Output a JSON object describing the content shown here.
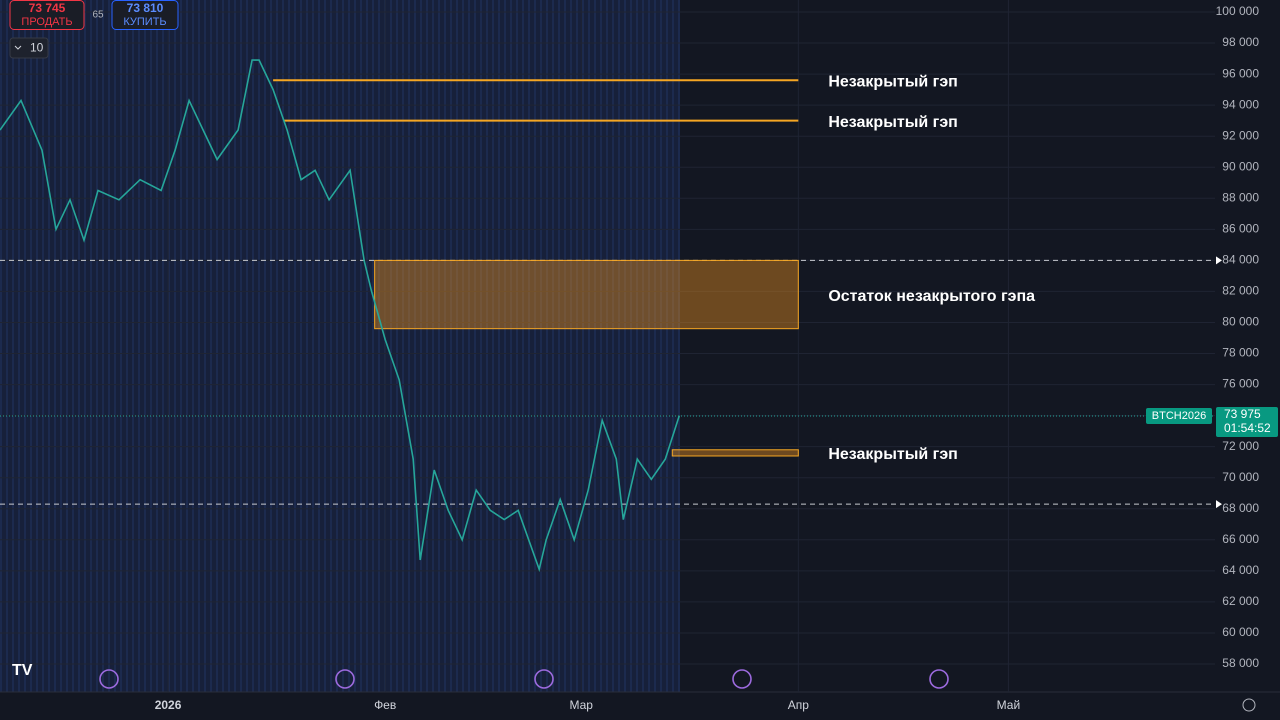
{
  "chart_data": {
    "type": "line",
    "symbol": "BTCH2026",
    "sell": {
      "price": {
        "value": 73745,
        "label": "73 745"
      },
      "label": "ПРОДАТЬ"
    },
    "spread": 65,
    "buy": {
      "price": {
        "value": 73810,
        "label": "73 810"
      },
      "label": "КУПИТЬ"
    },
    "interval": 10,
    "last_price": {
      "value": 73975,
      "label": "73 975"
    },
    "countdown": "01:54:52",
    "color": "#26a69a",
    "x": [
      -24,
      -21,
      -18,
      -16,
      -14,
      -12,
      -10,
      -7,
      -4,
      -1,
      1,
      3,
      5,
      7,
      10,
      12,
      13,
      15,
      17,
      19,
      21,
      23,
      26,
      28,
      29,
      31,
      33,
      35,
      36,
      38,
      40,
      42,
      44,
      46,
      48,
      50,
      53,
      54,
      56,
      58,
      60,
      62,
      64,
      65,
      67,
      69,
      71,
      73
    ],
    "values": [
      92400,
      94300,
      91100,
      86000,
      87900,
      85300,
      88500,
      87900,
      89200,
      88500,
      91100,
      94300,
      92400,
      90500,
      92400,
      96900,
      96900,
      95000,
      92400,
      89200,
      89800,
      87900,
      89800,
      84000,
      82100,
      78900,
      76300,
      71200,
      64700,
      70500,
      67900,
      66000,
      69200,
      67900,
      67300,
      67900,
      64100,
      66000,
      68600,
      66000,
      69200,
      73700,
      71200,
      67300,
      71200,
      69900,
      71200,
      74000
    ],
    "xlim": [
      -24,
      149.5
    ],
    "xticks": [
      {
        "value": 0,
        "label": "2026"
      },
      {
        "value": 31,
        "label": "Фев"
      },
      {
        "value": 59,
        "label": "Мар"
      },
      {
        "value": 90,
        "label": "Апр"
      },
      {
        "value": 120,
        "label": "Май"
      }
    ],
    "ylim": [
      58000,
      100000
    ],
    "yticks": [
      {
        "value": 58000,
        "label": "58 000"
      },
      {
        "value": 60000,
        "label": "60 000"
      },
      {
        "value": 62000,
        "label": "62 000"
      },
      {
        "value": 64000,
        "label": "64 000"
      },
      {
        "value": 66000,
        "label": "66 000"
      },
      {
        "value": 68000,
        "label": "68 000"
      },
      {
        "value": 70000,
        "label": "70 000"
      },
      {
        "value": 72000,
        "label": "72 000"
      },
      {
        "value": 74000,
        "label": "74 000"
      },
      {
        "value": 76000,
        "label": "76 000"
      },
      {
        "value": 78000,
        "label": "78 000"
      },
      {
        "value": 80000,
        "label": "80 000"
      },
      {
        "value": 82000,
        "label": "82 000"
      },
      {
        "value": 84000,
        "label": "84 000"
      },
      {
        "value": 86000,
        "label": "86 000"
      },
      {
        "value": 88000,
        "label": "88 000"
      },
      {
        "value": 90000,
        "label": "90 000"
      },
      {
        "value": 92000,
        "label": "92 000"
      },
      {
        "value": 94000,
        "label": "94 000"
      },
      {
        "value": 96000,
        "label": "96 000"
      },
      {
        "value": 98000,
        "label": "98 000"
      },
      {
        "value": 100000,
        "label": "100 000"
      }
    ],
    "levels": [
      84000,
      68300
    ],
    "gaps": [
      {
        "label": "Незакрытый гэп",
        "top": 95600,
        "bottom": 95600,
        "start": 15,
        "end": 90
      },
      {
        "label": "Незакрытый гэп",
        "top": 93000,
        "bottom": 93000,
        "start": 16.5,
        "end": 90
      },
      {
        "label": "Остаток незакрытого гэпа",
        "top": 84000,
        "bottom": 79600,
        "start": 29.5,
        "end": 90
      },
      {
        "label": "Незакрытый гэп",
        "top": 71800,
        "bottom": 71400,
        "start": 72,
        "end": 90
      }
    ]
  }
}
